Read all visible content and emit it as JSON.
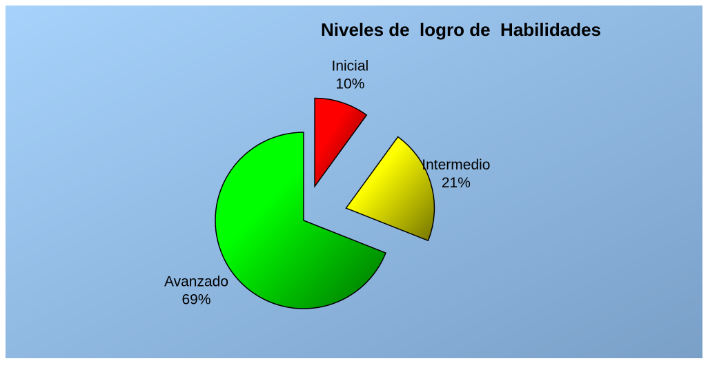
{
  "chart_data": {
    "type": "pie",
    "title": "Niveles de  logro de  Habilidades",
    "categories": [
      "Inicial",
      "Intermedio",
      "Avanzado"
    ],
    "values": [
      10,
      21,
      69
    ],
    "value_labels": [
      "10%",
      "21%",
      "69%"
    ],
    "colors": [
      "#ff0000",
      "#ffff00",
      "#00ff00"
    ]
  }
}
